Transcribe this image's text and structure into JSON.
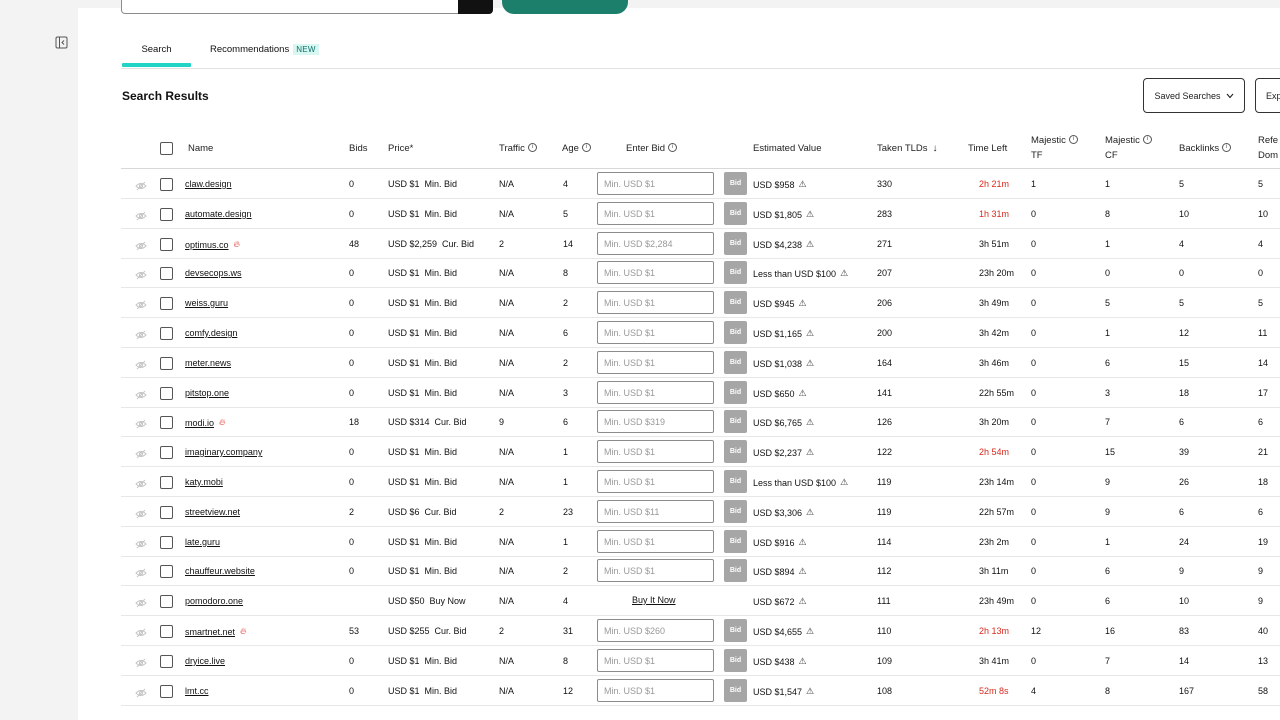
{
  "tabs": {
    "search": "Search",
    "recommendations": "Recommendations",
    "new_badge": "NEW"
  },
  "results_title": "Search Results",
  "buttons": {
    "saved_searches": "Saved Searches",
    "export": "Exp"
  },
  "headers": {
    "name": "Name",
    "bids": "Bids",
    "price": "Price*",
    "traffic": "Traffic",
    "age": "Age",
    "enter_bid": "Enter Bid",
    "estimated_value": "Estimated Value",
    "taken_tlds": "Taken TLDs",
    "time_left": "Time Left",
    "majestic_tf_1": "Majestic",
    "majestic_tf_2": "TF",
    "majestic_cf_1": "Majestic",
    "majestic_cf_2": "CF",
    "backlinks": "Backlinks",
    "ref_domains_1": "Refe",
    "ref_domains_2": "Dom"
  },
  "labels": {
    "bid": "Bid",
    "buy_now": "Buy It Now"
  },
  "colors": {
    "accent_teal": "#21d4c6",
    "urgent_red": "#d62a1f",
    "hot_icon": "#e2332a"
  },
  "rows": [
    {
      "name": "claw.design",
      "hot": false,
      "bids": "0",
      "price": "USD $1  Min. Bid",
      "traffic": "N/A",
      "age": "4",
      "bid_placeholder": "Min. USD $1",
      "est": "USD $958",
      "tlds": "330",
      "time": "2h 21m",
      "time_urgent": true,
      "tf": "1",
      "cf": "1",
      "backlinks": "5",
      "ref": "5"
    },
    {
      "name": "automate.design",
      "hot": false,
      "bids": "0",
      "price": "USD $1  Min. Bid",
      "traffic": "N/A",
      "age": "5",
      "bid_placeholder": "Min. USD $1",
      "est": "USD $1,805",
      "tlds": "283",
      "time": "1h 31m",
      "time_urgent": true,
      "tf": "0",
      "cf": "8",
      "backlinks": "10",
      "ref": "10"
    },
    {
      "name": "optimus.co",
      "hot": true,
      "bids": "48",
      "price": "USD $2,259  Cur. Bid",
      "traffic": "2",
      "age": "14",
      "bid_placeholder": "Min. USD $2,284",
      "est": "USD $4,238",
      "tlds": "271",
      "time": "3h 51m",
      "time_urgent": false,
      "tf": "0",
      "cf": "1",
      "backlinks": "4",
      "ref": "4"
    },
    {
      "name": "devsecops.ws",
      "hot": false,
      "bids": "0",
      "price": "USD $1  Min. Bid",
      "traffic": "N/A",
      "age": "8",
      "bid_placeholder": "Min. USD $1",
      "est": "Less than USD $100",
      "tlds": "207",
      "time": "23h 20m",
      "time_urgent": false,
      "tf": "0",
      "cf": "0",
      "backlinks": "0",
      "ref": "0"
    },
    {
      "name": "weiss.guru",
      "hot": false,
      "bids": "0",
      "price": "USD $1  Min. Bid",
      "traffic": "N/A",
      "age": "2",
      "bid_placeholder": "Min. USD $1",
      "est": "USD $945",
      "tlds": "206",
      "time": "3h 49m",
      "time_urgent": false,
      "tf": "0",
      "cf": "5",
      "backlinks": "5",
      "ref": "5"
    },
    {
      "name": "comfy.design",
      "hot": false,
      "bids": "0",
      "price": "USD $1  Min. Bid",
      "traffic": "N/A",
      "age": "6",
      "bid_placeholder": "Min. USD $1",
      "est": "USD $1,165",
      "tlds": "200",
      "time": "3h 42m",
      "time_urgent": false,
      "tf": "0",
      "cf": "1",
      "backlinks": "12",
      "ref": "11"
    },
    {
      "name": "meter.news",
      "hot": false,
      "bids": "0",
      "price": "USD $1  Min. Bid",
      "traffic": "N/A",
      "age": "2",
      "bid_placeholder": "Min. USD $1",
      "est": "USD $1,038",
      "tlds": "164",
      "time": "3h 46m",
      "time_urgent": false,
      "tf": "0",
      "cf": "6",
      "backlinks": "15",
      "ref": "14"
    },
    {
      "name": "pitstop.one",
      "hot": false,
      "bids": "0",
      "price": "USD $1  Min. Bid",
      "traffic": "N/A",
      "age": "3",
      "bid_placeholder": "Min. USD $1",
      "est": "USD $650",
      "tlds": "141",
      "time": "22h 55m",
      "time_urgent": false,
      "tf": "0",
      "cf": "3",
      "backlinks": "18",
      "ref": "17"
    },
    {
      "name": "modi.io",
      "hot": true,
      "bids": "18",
      "price": "USD $314  Cur. Bid",
      "traffic": "9",
      "age": "6",
      "bid_placeholder": "Min. USD $319",
      "est": "USD $6,765",
      "tlds": "126",
      "time": "3h 20m",
      "time_urgent": false,
      "tf": "0",
      "cf": "7",
      "backlinks": "6",
      "ref": "6"
    },
    {
      "name": "imaginary.company",
      "hot": false,
      "bids": "0",
      "price": "USD $1  Min. Bid",
      "traffic": "N/A",
      "age": "1",
      "bid_placeholder": "Min. USD $1",
      "est": "USD $2,237",
      "tlds": "122",
      "time": "2h 54m",
      "time_urgent": true,
      "tf": "0",
      "cf": "15",
      "backlinks": "39",
      "ref": "21"
    },
    {
      "name": "katy.mobi",
      "hot": false,
      "bids": "0",
      "price": "USD $1  Min. Bid",
      "traffic": "N/A",
      "age": "1",
      "bid_placeholder": "Min. USD $1",
      "est": "Less than USD $100",
      "tlds": "119",
      "time": "23h 14m",
      "time_urgent": false,
      "tf": "0",
      "cf": "9",
      "backlinks": "26",
      "ref": "18"
    },
    {
      "name": "streetview.net",
      "hot": false,
      "bids": "2",
      "price": "USD $6  Cur. Bid",
      "traffic": "2",
      "age": "23",
      "bid_placeholder": "Min. USD $11",
      "est": "USD $3,306",
      "tlds": "119",
      "time": "22h 57m",
      "time_urgent": false,
      "tf": "0",
      "cf": "9",
      "backlinks": "6",
      "ref": "6"
    },
    {
      "name": "late.guru",
      "hot": false,
      "bids": "0",
      "price": "USD $1  Min. Bid",
      "traffic": "N/A",
      "age": "1",
      "bid_placeholder": "Min. USD $1",
      "est": "USD $916",
      "tlds": "114",
      "time": "23h 2m",
      "time_urgent": false,
      "tf": "0",
      "cf": "1",
      "backlinks": "24",
      "ref": "19"
    },
    {
      "name": "chauffeur.website",
      "hot": false,
      "bids": "0",
      "price": "USD $1  Min. Bid",
      "traffic": "N/A",
      "age": "2",
      "bid_placeholder": "Min. USD $1",
      "est": "USD $894",
      "tlds": "112",
      "time": "3h 11m",
      "time_urgent": false,
      "tf": "0",
      "cf": "6",
      "backlinks": "9",
      "ref": "9"
    },
    {
      "name": "pomodoro.one",
      "hot": false,
      "bids": "",
      "price": "USD $50  Buy Now",
      "traffic": "N/A",
      "age": "4",
      "bid_placeholder": "",
      "buy_now": true,
      "est": "USD $672",
      "tlds": "111",
      "time": "23h 49m",
      "time_urgent": false,
      "tf": "0",
      "cf": "6",
      "backlinks": "10",
      "ref": "9"
    },
    {
      "name": "smartnet.net",
      "hot": true,
      "bids": "53",
      "price": "USD $255  Cur. Bid",
      "traffic": "2",
      "age": "31",
      "bid_placeholder": "Min. USD $260",
      "est": "USD $4,655",
      "tlds": "110",
      "time": "2h 13m",
      "time_urgent": true,
      "tf": "12",
      "cf": "16",
      "backlinks": "83",
      "ref": "40"
    },
    {
      "name": "dryice.live",
      "hot": false,
      "bids": "0",
      "price": "USD $1  Min. Bid",
      "traffic": "N/A",
      "age": "8",
      "bid_placeholder": "Min. USD $1",
      "est": "USD $438",
      "tlds": "109",
      "time": "3h 41m",
      "time_urgent": false,
      "tf": "0",
      "cf": "7",
      "backlinks": "14",
      "ref": "13"
    },
    {
      "name": "lmt.cc",
      "hot": false,
      "bids": "0",
      "price": "USD $1  Min. Bid",
      "traffic": "N/A",
      "age": "12",
      "bid_placeholder": "Min. USD $1",
      "est": "USD $1,547",
      "tlds": "108",
      "time": "52m 8s",
      "time_urgent": true,
      "tf": "4",
      "cf": "8",
      "backlinks": "167",
      "ref": "58"
    }
  ]
}
